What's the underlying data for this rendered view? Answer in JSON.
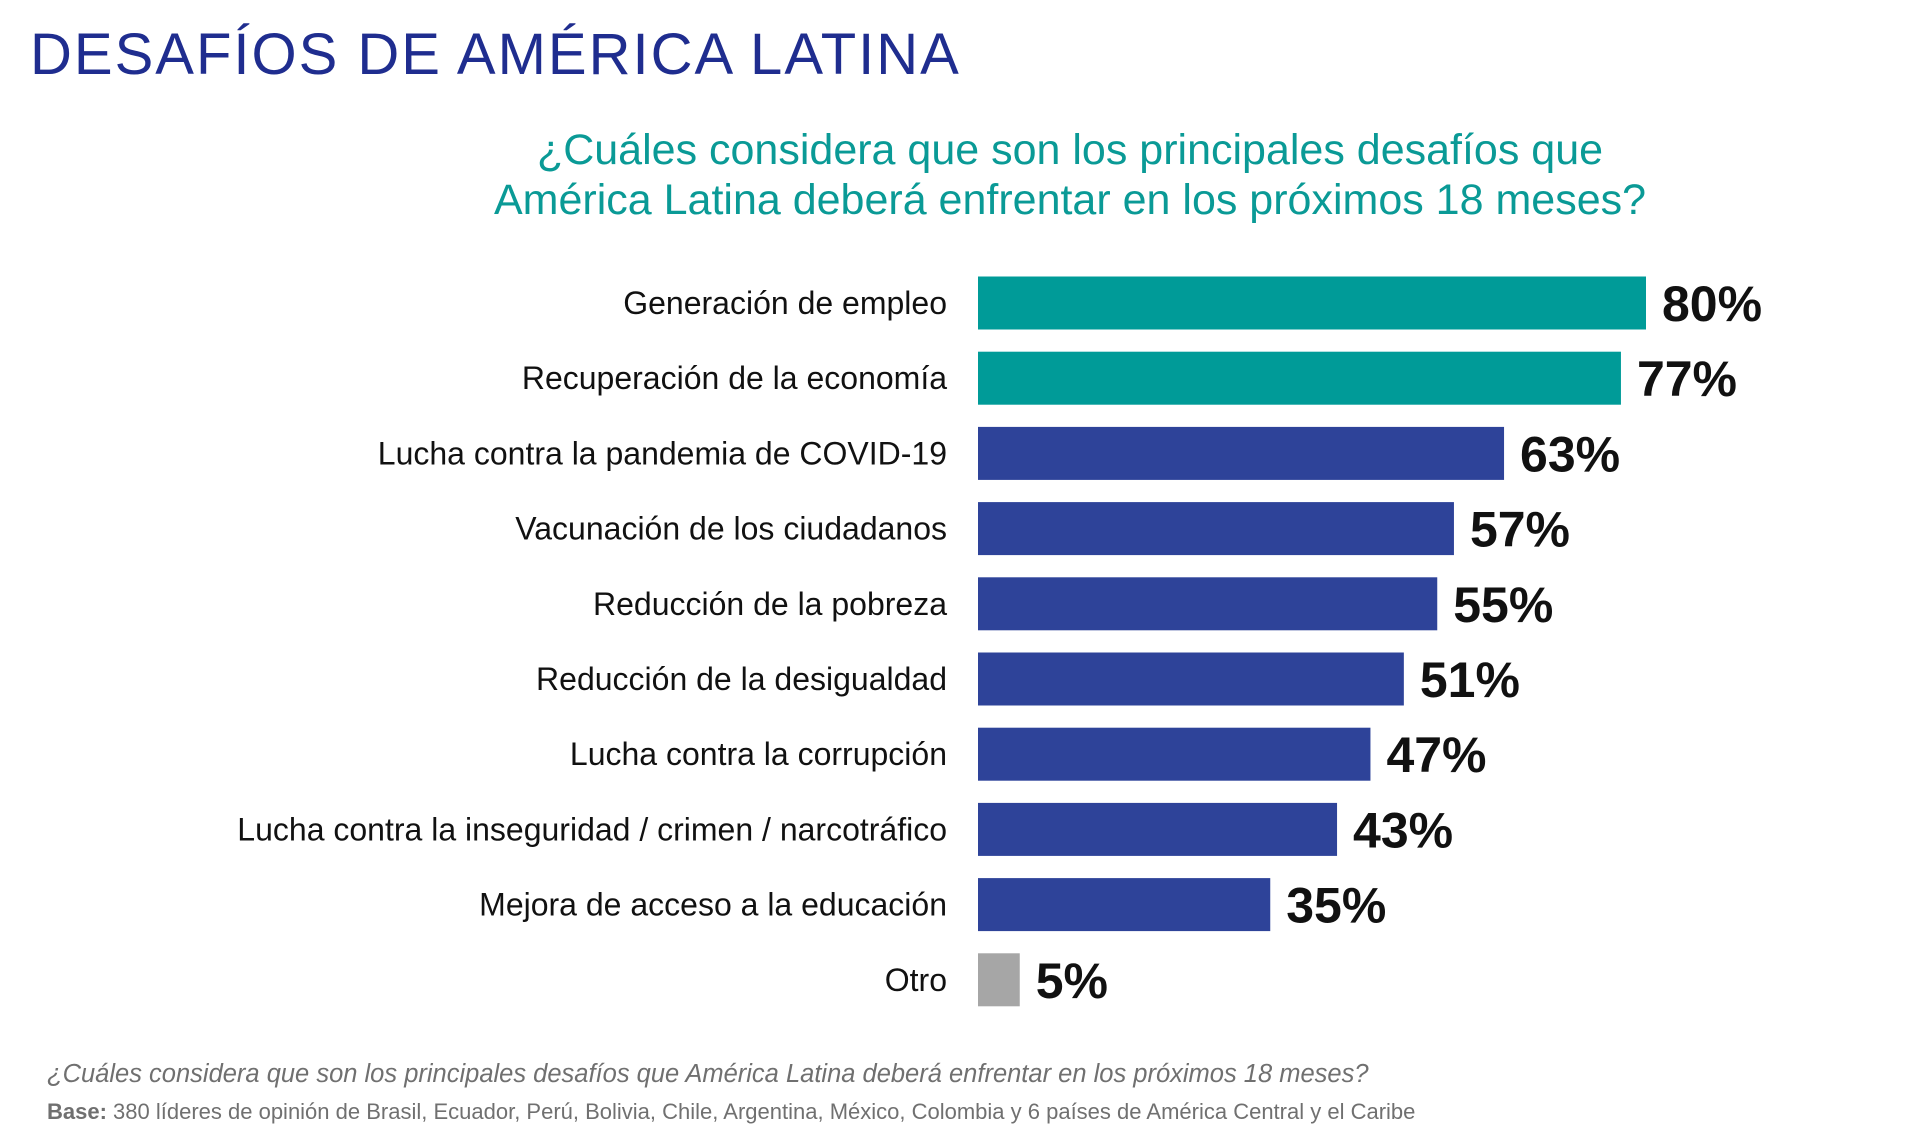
{
  "header": {
    "title": "DESAFÍOS DE AMÉRICA LATINA",
    "question_line1": "¿Cuáles considera que son los principales desafíos que",
    "question_line2": "América Latina deberá enfrentar en los próximos 18 meses?"
  },
  "colors": {
    "title": "#1f2d8f",
    "question": "#0a9a96",
    "teal_bar": "#009b98",
    "blue_bar": "#2e4399",
    "gray_bar": "#a6a6a6"
  },
  "chart_data": {
    "type": "bar",
    "orientation": "horizontal",
    "categories": [
      "Generación de empleo",
      "Recuperación de la economía",
      "Lucha contra la pandemia de COVID-19",
      "Vacunación de los ciudadanos",
      "Reducción de la pobreza",
      "Reducción de la desigualdad",
      "Lucha contra la corrupción",
      "Lucha contra la inseguridad / crimen / narcotráfico",
      "Mejora de acceso a la educación",
      "Otro"
    ],
    "values": [
      80,
      77,
      63,
      57,
      55,
      51,
      47,
      43,
      35,
      5
    ],
    "value_labels": [
      "80%",
      "77%",
      "63%",
      "57%",
      "55%",
      "51%",
      "47%",
      "43%",
      "35%",
      "5%"
    ],
    "bar_colors": [
      "teal_bar",
      "teal_bar",
      "blue_bar",
      "blue_bar",
      "blue_bar",
      "blue_bar",
      "blue_bar",
      "blue_bar",
      "blue_bar",
      "gray_bar"
    ],
    "unit": "%",
    "xlim": [
      0,
      100
    ],
    "grid": false,
    "legend": "none"
  },
  "footer": {
    "question": "¿Cuáles considera que son los principales desafíos que América Latina deberá enfrentar en los próximos 18 meses?",
    "base_label": "Base:",
    "base_text": " 380 líderes de opinión de Brasil, Ecuador, Perú, Bolivia, Chile, Argentina, México, Colombia y 6 países de América Central y el Caribe"
  }
}
